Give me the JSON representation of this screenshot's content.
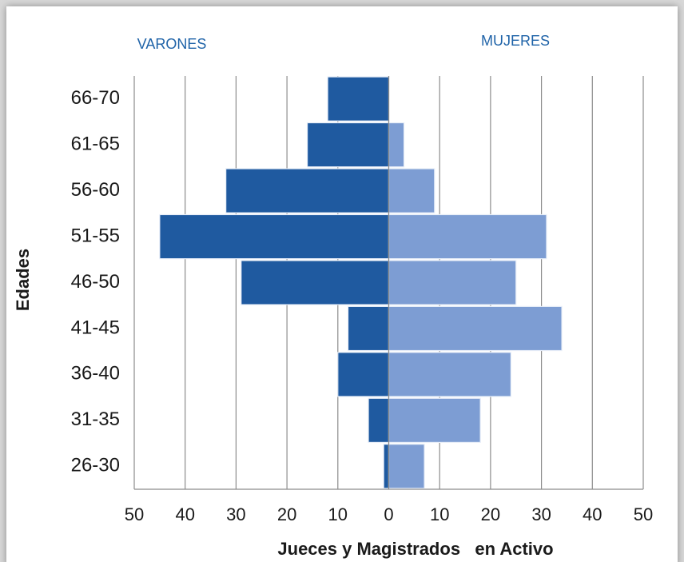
{
  "chart_data": {
    "type": "bar",
    "orientation": "horizontal",
    "xlabel": "Jueces y Magistrados   en Activo",
    "ylabel": "Edades",
    "categories": [
      "66-70",
      "61-65",
      "56-60",
      "51-55",
      "46-50",
      "41-45",
      "36-40",
      "31-35",
      "26-30"
    ],
    "series": [
      {
        "name": "VARONES",
        "color": "#1f5aa0",
        "values": [
          -12,
          -16,
          -32,
          -45,
          -29,
          -8,
          -10,
          -4,
          -1
        ]
      },
      {
        "name": "MUJERES",
        "color": "#7d9dd3",
        "values": [
          0,
          3,
          9,
          31,
          25,
          34,
          24,
          18,
          7
        ]
      }
    ],
    "xlim": [
      -50,
      50
    ],
    "xticks": [
      {
        "value": -50,
        "label": "50"
      },
      {
        "value": -40,
        "label": "40"
      },
      {
        "value": -30,
        "label": "30"
      },
      {
        "value": -20,
        "label": "20"
      },
      {
        "value": -10,
        "label": "10"
      },
      0,
      10,
      20,
      30,
      40,
      50
    ],
    "grid": true
  }
}
